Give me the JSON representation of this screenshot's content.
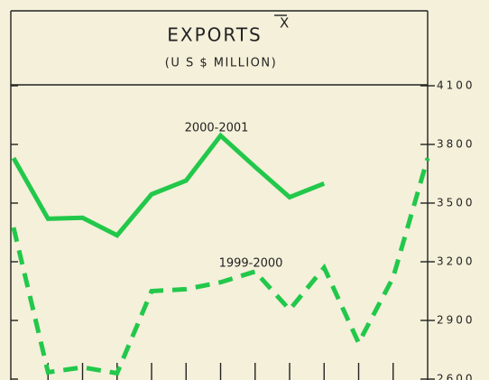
{
  "chart_data": {
    "type": "line",
    "title": "EXPORTS",
    "title_mark": "X",
    "subtitle": "(U S $ MILLION)",
    "categories": [
      null,
      null,
      null,
      null,
      null,
      null,
      null,
      null,
      null,
      null,
      null,
      null,
      null
    ],
    "series": [
      {
        "name": "2000-2001",
        "color": "#22c84a",
        "linestyle": "solid",
        "values": [
          3730,
          3420,
          3425,
          3335,
          3545,
          3615,
          3845,
          3685,
          3530,
          3600,
          null,
          null,
          null
        ]
      },
      {
        "name": "1999-2000",
        "color": "#22c84a",
        "linestyle": "dashed",
        "values": [
          3375,
          2635,
          2660,
          2630,
          3050,
          3060,
          3095,
          3150,
          2955,
          3170,
          2785,
          3120,
          3730
        ]
      }
    ],
    "ylim": [
      2600,
      4100
    ],
    "yticks": [
      2600,
      2900,
      3200,
      3500,
      3800,
      4100
    ],
    "grid": false
  }
}
